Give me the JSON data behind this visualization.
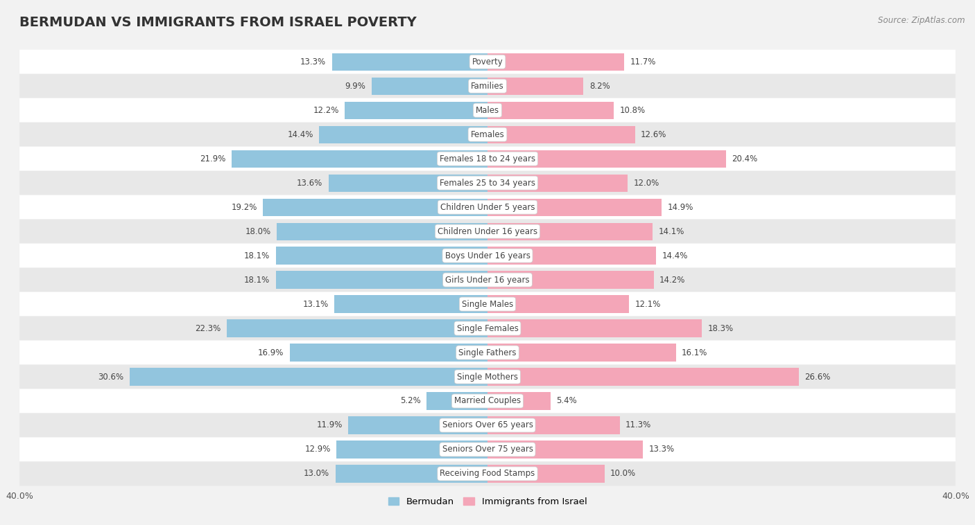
{
  "title": "BERMUDAN VS IMMIGRANTS FROM ISRAEL POVERTY",
  "source": "Source: ZipAtlas.com",
  "categories": [
    "Poverty",
    "Families",
    "Males",
    "Females",
    "Females 18 to 24 years",
    "Females 25 to 34 years",
    "Children Under 5 years",
    "Children Under 16 years",
    "Boys Under 16 years",
    "Girls Under 16 years",
    "Single Males",
    "Single Females",
    "Single Fathers",
    "Single Mothers",
    "Married Couples",
    "Seniors Over 65 years",
    "Seniors Over 75 years",
    "Receiving Food Stamps"
  ],
  "bermudan": [
    13.3,
    9.9,
    12.2,
    14.4,
    21.9,
    13.6,
    19.2,
    18.0,
    18.1,
    18.1,
    13.1,
    22.3,
    16.9,
    30.6,
    5.2,
    11.9,
    12.9,
    13.0
  ],
  "israel": [
    11.7,
    8.2,
    10.8,
    12.6,
    20.4,
    12.0,
    14.9,
    14.1,
    14.4,
    14.2,
    12.1,
    18.3,
    16.1,
    26.6,
    5.4,
    11.3,
    13.3,
    10.0
  ],
  "bermudan_color": "#92c5de",
  "israel_color": "#f4a6b8",
  "bg_color": "#f2f2f2",
  "row_color_even": "#ffffff",
  "row_color_odd": "#e8e8e8",
  "axis_limit": 40.0,
  "legend_bermudan": "Bermudan",
  "legend_israel": "Immigrants from Israel",
  "bar_height": 0.72,
  "title_fontsize": 14,
  "label_fontsize": 8.5,
  "value_fontsize": 8.5
}
